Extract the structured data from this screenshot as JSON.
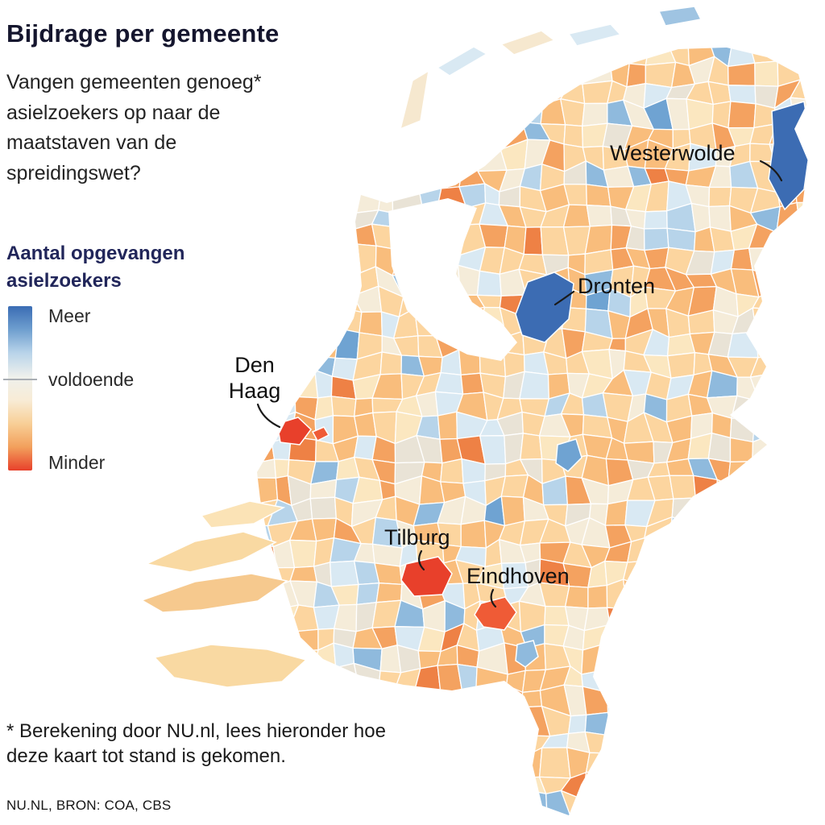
{
  "header": {
    "title": "Bijdrage per gemeente",
    "subtitle": "Vangen gemeenten genoeg* asielzoekers op naar de maatstaven van de spreidingswet?"
  },
  "legend": {
    "heading": "Aantal opgevangen asielzoekers",
    "top_label": "Meer",
    "middle_label": "voldoende",
    "bottom_label": "Minder",
    "gradient": [
      "#3a6cb4",
      "#6f9fcf",
      "#b9d4ea",
      "#eef0ec",
      "#f8ecd6",
      "#f8cf97",
      "#f2a05c",
      "#e8402b"
    ]
  },
  "map": {
    "colors": {
      "more": "#3c6cb3",
      "less": "#e8402b",
      "less_mid": "#ef5b36",
      "blue_mid": "#6fa3d2",
      "blue_light": "#8fbadd"
    },
    "palette": [
      {
        "c": "#fcd59f",
        "w": 0.27
      },
      {
        "c": "#f9bd7c",
        "w": 0.17
      },
      {
        "c": "#f4a260",
        "w": 0.09
      },
      {
        "c": "#ee8145",
        "w": 0.03
      },
      {
        "c": "#f5ecd9",
        "w": 0.13
      },
      {
        "c": "#e9e3d6",
        "w": 0.06
      },
      {
        "c": "#fbe7c0",
        "w": 0.07
      },
      {
        "c": "#d9e9f3",
        "w": 0.09
      },
      {
        "c": "#b7d4ea",
        "w": 0.05
      },
      {
        "c": "#8fbadd",
        "w": 0.03
      },
      {
        "c": "#6fa3d2",
        "w": 0.01
      }
    ],
    "annotations": [
      {
        "name": "Westerwolde",
        "category": "Meer"
      },
      {
        "name": "Dronten",
        "category": "Meer"
      },
      {
        "name": "Den Haag",
        "category": "Minder"
      },
      {
        "name": "Tilburg",
        "category": "Minder"
      },
      {
        "name": "Eindhoven",
        "category": "Minder"
      }
    ]
  },
  "chart_data": {
    "type": "choropleth-map",
    "title": "Bijdrage per gemeente",
    "region": "Netherlands, by municipality (gemeente)",
    "scale": {
      "type": "diverging",
      "max_label": "Meer",
      "mid_label": "voldoende",
      "min_label": "Minder",
      "max_color": "#3a6cb4",
      "mid_color": "#f3efe4",
      "min_color": "#e8402b"
    },
    "labeled_regions": [
      {
        "name": "Westerwolde",
        "value": "Meer"
      },
      {
        "name": "Dronten",
        "value": "Meer"
      },
      {
        "name": "Den Haag",
        "value": "Minder"
      },
      {
        "name": "Tilburg",
        "value": "Minder"
      },
      {
        "name": "Eindhoven",
        "value": "Minder"
      }
    ]
  },
  "footnote": "* Berekening door NU.nl, lees hieronder hoe deze kaart tot stand is gekomen.",
  "source": "NU.NL, BRON: COA, CBS"
}
